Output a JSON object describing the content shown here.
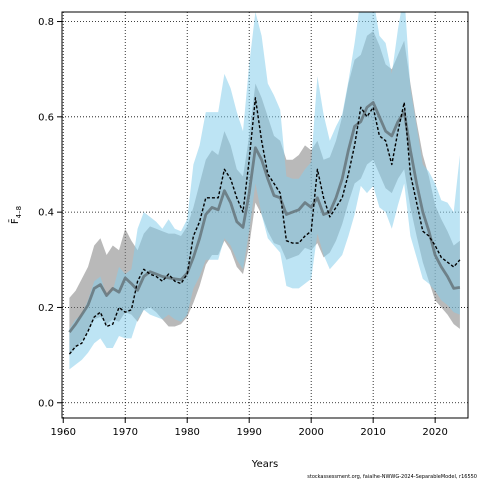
{
  "chart_data": {
    "type": "area",
    "xlabel": "Years",
    "ylabel": "F̄",
    "ylabel_sub": "4–8",
    "xlim": [
      1959.8,
      2025.3
    ],
    "ylim": [
      -0.032,
      0.82
    ],
    "x_ticks": [
      1960,
      1970,
      1980,
      1990,
      2000,
      2010,
      2020
    ],
    "y_ticks": [
      0.0,
      0.2,
      0.4,
      0.6,
      0.8
    ],
    "y_tick_labels": [
      "0.0",
      "0.2",
      "0.4",
      "0.6",
      "0.8"
    ],
    "grid": true,
    "series": [
      {
        "color": "#808080",
        "x": [
          1961,
          1962,
          1963,
          1964,
          1965,
          1966,
          1967,
          1968,
          1969,
          1970,
          1971,
          1972,
          1973,
          1974,
          1975,
          1976,
          1977,
          1978,
          1979,
          1980,
          1981,
          1982,
          1983,
          1984,
          1985,
          1986,
          1987,
          1988,
          1989,
          1990,
          1991,
          1992,
          1993,
          1994,
          1995,
          1996,
          1997,
          1998,
          1999,
          2000,
          2001,
          2002,
          2003,
          2004,
          2005,
          2006,
          2007,
          2008,
          2009,
          2010,
          2011,
          2012,
          2013,
          2014,
          2015,
          2016,
          2017,
          2018,
          2019,
          2020,
          2021,
          2022,
          2023,
          2024
        ],
        "values": [
          0.148,
          0.165,
          0.185,
          0.205,
          0.24,
          0.248,
          0.225,
          0.24,
          0.232,
          0.262,
          0.25,
          0.236,
          0.265,
          0.275,
          0.27,
          0.265,
          0.262,
          0.26,
          0.258,
          0.272,
          0.305,
          0.345,
          0.395,
          0.41,
          0.405,
          0.445,
          0.42,
          0.38,
          0.368,
          0.44,
          0.535,
          0.51,
          0.47,
          0.435,
          0.43,
          0.395,
          0.4,
          0.405,
          0.42,
          0.41,
          0.43,
          0.395,
          0.4,
          0.43,
          0.47,
          0.53,
          0.58,
          0.59,
          0.62,
          0.63,
          0.6,
          0.57,
          0.56,
          0.59,
          0.61,
          0.53,
          0.46,
          0.4,
          0.36,
          0.31,
          0.285,
          0.265,
          0.24,
          0.242
        ],
        "lower": [
          0.1,
          0.115,
          0.13,
          0.15,
          0.175,
          0.18,
          0.165,
          0.175,
          0.17,
          0.19,
          0.185,
          0.17,
          0.195,
          0.2,
          0.19,
          0.175,
          0.16,
          0.16,
          0.165,
          0.18,
          0.21,
          0.245,
          0.29,
          0.31,
          0.31,
          0.34,
          0.32,
          0.285,
          0.27,
          0.33,
          0.42,
          0.395,
          0.36,
          0.335,
          0.33,
          0.3,
          0.305,
          0.31,
          0.325,
          0.32,
          0.335,
          0.305,
          0.315,
          0.34,
          0.375,
          0.42,
          0.46,
          0.47,
          0.5,
          0.51,
          0.48,
          0.45,
          0.44,
          0.47,
          0.49,
          0.41,
          0.35,
          0.295,
          0.255,
          0.215,
          0.2,
          0.185,
          0.165,
          0.155
        ],
        "upper": [
          0.22,
          0.235,
          0.26,
          0.285,
          0.33,
          0.345,
          0.31,
          0.33,
          0.32,
          0.365,
          0.34,
          0.32,
          0.355,
          0.37,
          0.365,
          0.36,
          0.355,
          0.355,
          0.35,
          0.37,
          0.41,
          0.46,
          0.51,
          0.53,
          0.52,
          0.57,
          0.54,
          0.49,
          0.475,
          0.56,
          0.67,
          0.64,
          0.6,
          0.56,
          0.55,
          0.51,
          0.51,
          0.52,
          0.54,
          0.53,
          0.55,
          0.51,
          0.515,
          0.55,
          0.6,
          0.67,
          0.72,
          0.73,
          0.77,
          0.78,
          0.75,
          0.71,
          0.7,
          0.73,
          0.76,
          0.67,
          0.59,
          0.52,
          0.475,
          0.415,
          0.385,
          0.36,
          0.33,
          0.34
        ]
      },
      {
        "color": "#87ceeb",
        "x": [
          1961,
          1962,
          1963,
          1964,
          1965,
          1966,
          1967,
          1968,
          1969,
          1970,
          1971,
          1972,
          1973,
          1974,
          1975,
          1976,
          1977,
          1978,
          1979,
          1980,
          1981,
          1982,
          1983,
          1984,
          1985,
          1986,
          1987,
          1988,
          1989,
          1990,
          1991,
          1992,
          1993,
          1994,
          1995,
          1996,
          1997,
          1998,
          1999,
          2000,
          2001,
          2002,
          2003,
          2004,
          2005,
          2006,
          2007,
          2008,
          2009,
          2010,
          2011,
          2012,
          2013,
          2014,
          2015,
          2016,
          2017,
          2018,
          2019,
          2020,
          2021,
          2022,
          2023,
          2024
        ],
        "values": [
          0.102,
          0.118,
          0.125,
          0.15,
          0.18,
          0.19,
          0.16,
          0.165,
          0.2,
          0.19,
          0.195,
          0.255,
          0.28,
          0.27,
          0.265,
          0.255,
          0.27,
          0.255,
          0.25,
          0.27,
          0.35,
          0.38,
          0.43,
          0.43,
          0.43,
          0.49,
          0.47,
          0.43,
          0.4,
          0.51,
          0.64,
          0.55,
          0.48,
          0.46,
          0.44,
          0.34,
          0.335,
          0.335,
          0.35,
          0.36,
          0.49,
          0.43,
          0.39,
          0.41,
          0.43,
          0.48,
          0.54,
          0.62,
          0.6,
          0.62,
          0.56,
          0.55,
          0.5,
          0.57,
          0.63,
          0.48,
          0.42,
          0.36,
          0.35,
          0.33,
          0.305,
          0.295,
          0.285,
          0.3
        ],
        "lower": [
          0.07,
          0.08,
          0.09,
          0.105,
          0.125,
          0.135,
          0.115,
          0.115,
          0.14,
          0.135,
          0.135,
          0.175,
          0.195,
          0.185,
          0.18,
          0.175,
          0.185,
          0.175,
          0.17,
          0.185,
          0.24,
          0.265,
          0.3,
          0.3,
          0.3,
          0.345,
          0.33,
          0.3,
          0.28,
          0.36,
          0.46,
          0.395,
          0.345,
          0.33,
          0.315,
          0.245,
          0.24,
          0.24,
          0.25,
          0.26,
          0.355,
          0.31,
          0.28,
          0.295,
          0.31,
          0.35,
          0.395,
          0.455,
          0.44,
          0.455,
          0.41,
          0.4,
          0.365,
          0.415,
          0.46,
          0.35,
          0.305,
          0.26,
          0.25,
          0.235,
          0.215,
          0.205,
          0.19,
          0.185
        ],
        "upper": [
          0.155,
          0.175,
          0.185,
          0.215,
          0.255,
          0.265,
          0.225,
          0.235,
          0.285,
          0.27,
          0.28,
          0.365,
          0.4,
          0.39,
          0.38,
          0.365,
          0.385,
          0.365,
          0.36,
          0.385,
          0.5,
          0.54,
          0.61,
          0.61,
          0.61,
          0.69,
          0.66,
          0.61,
          0.57,
          0.71,
          0.82,
          0.77,
          0.67,
          0.645,
          0.615,
          0.475,
          0.47,
          0.47,
          0.49,
          0.505,
          0.685,
          0.605,
          0.55,
          0.58,
          0.605,
          0.675,
          0.755,
          0.85,
          0.82,
          0.85,
          0.77,
          0.755,
          0.69,
          0.785,
          0.86,
          0.66,
          0.58,
          0.5,
          0.485,
          0.46,
          0.425,
          0.42,
          0.4,
          0.52
        ]
      }
    ]
  },
  "credit": "stockassessment.org, faialhe-NWWG-2024-SeparableModel, r16550"
}
